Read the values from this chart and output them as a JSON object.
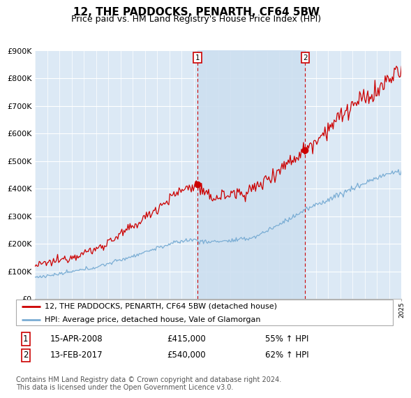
{
  "title": "12, THE PADDOCKS, PENARTH, CF64 5BW",
  "subtitle": "Price paid vs. HM Land Registry's House Price Index (HPI)",
  "ylim": [
    0,
    900000
  ],
  "yticks": [
    0,
    100000,
    200000,
    300000,
    400000,
    500000,
    600000,
    700000,
    800000,
    900000
  ],
  "ytick_labels": [
    "£0",
    "£100K",
    "£200K",
    "£300K",
    "£400K",
    "£500K",
    "£600K",
    "£700K",
    "£800K",
    "£900K"
  ],
  "x_start_year": 1995,
  "x_end_year": 2025,
  "bg_color": "#dce9f5",
  "plot_bg_color": "#ffffff",
  "red_line_color": "#cc0000",
  "blue_line_color": "#7aadd4",
  "shade_color": "#ccdff0",
  "transaction1": {
    "label": "1",
    "date": "15-APR-2008",
    "price": 415000,
    "hpi_pct": "55% ↑ HPI",
    "x": 2008.29
  },
  "transaction2": {
    "label": "2",
    "date": "13-FEB-2017",
    "price": 540000,
    "hpi_pct": "62% ↑ HPI",
    "x": 2017.12
  },
  "legend_line1": "12, THE PADDOCKS, PENARTH, CF64 5BW (detached house)",
  "legend_line2": "HPI: Average price, detached house, Vale of Glamorgan",
  "footer": "Contains HM Land Registry data © Crown copyright and database right 2024.\nThis data is licensed under the Open Government Licence v3.0.",
  "title_fontsize": 11,
  "subtitle_fontsize": 9,
  "tick_fontsize": 8,
  "legend_fontsize": 8,
  "footer_fontsize": 7
}
